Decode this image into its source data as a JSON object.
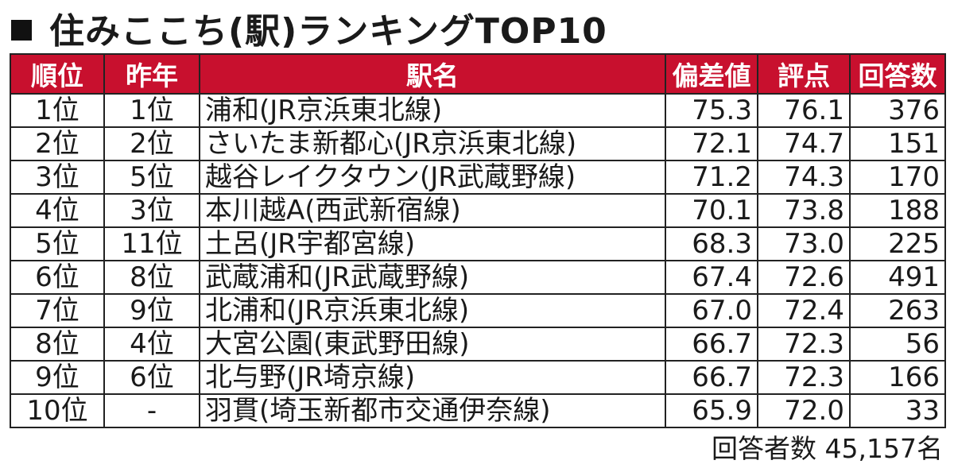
{
  "title": "住みここち(駅)ランキングTOP10",
  "table": {
    "headers": {
      "rank": "順位",
      "prev": "昨年",
      "station": "駅名",
      "deviation": "偏差値",
      "score": "評点",
      "responses": "回答数"
    },
    "rows": [
      {
        "rank": "1位",
        "prev": "1位",
        "station": "浦和(JR京浜東北線)",
        "deviation": "75.3",
        "score": "76.1",
        "responses": "376"
      },
      {
        "rank": "2位",
        "prev": "2位",
        "station": "さいたま新都心(JR京浜東北線)",
        "deviation": "72.1",
        "score": "74.7",
        "responses": "151"
      },
      {
        "rank": "3位",
        "prev": "5位",
        "station": "越谷レイクタウン(JR武蔵野線)",
        "deviation": "71.2",
        "score": "74.3",
        "responses": "170"
      },
      {
        "rank": "4位",
        "prev": "3位",
        "station": "本川越A(西武新宿線)",
        "deviation": "70.1",
        "score": "73.8",
        "responses": "188"
      },
      {
        "rank": "5位",
        "prev": "11位",
        "station": "土呂(JR宇都宮線)",
        "deviation": "68.3",
        "score": "73.0",
        "responses": "225"
      },
      {
        "rank": "6位",
        "prev": "8位",
        "station": "武蔵浦和(JR武蔵野線)",
        "deviation": "67.4",
        "score": "72.6",
        "responses": "491"
      },
      {
        "rank": "7位",
        "prev": "9位",
        "station": "北浦和(JR京浜東北線)",
        "deviation": "67.0",
        "score": "72.4",
        "responses": "263"
      },
      {
        "rank": "8位",
        "prev": "4位",
        "station": "大宮公園(東武野田線)",
        "deviation": "66.7",
        "score": "72.3",
        "responses": "56"
      },
      {
        "rank": "9位",
        "prev": "6位",
        "station": "北与野(JR埼京線)",
        "deviation": "66.7",
        "score": "72.3",
        "responses": "166"
      },
      {
        "rank": "10位",
        "prev": "-",
        "station": "羽貫(埼玉新都市交通伊奈線)",
        "deviation": "65.9",
        "score": "72.0",
        "responses": "33"
      }
    ]
  },
  "footer": "回答者数  45,157名",
  "colors": {
    "header_bg": "#c8102e",
    "header_text": "#ffffff"
  }
}
